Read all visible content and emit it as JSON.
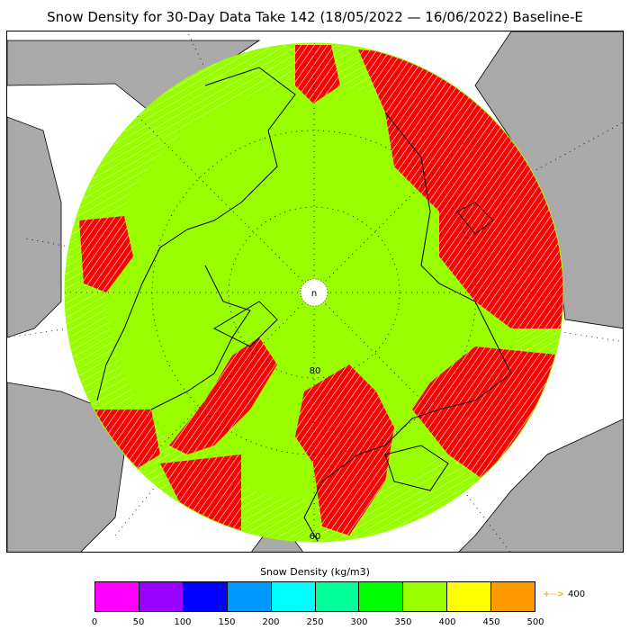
{
  "title": "Snow Density for 30-Day Data Take 142 (18/05/2022 — 16/06/2022) Baseline-E",
  "map": {
    "projection": "north-polar-stereographic",
    "latitude_labels": [
      "80",
      "60"
    ],
    "pole_marker": "n",
    "colors": {
      "land": "#a9a9a9",
      "ocean": "#ffffff",
      "density_350_400": "#99ff00",
      "density_over_400": "#ff0000",
      "coastline": "#000000",
      "graticule": "#000000"
    }
  },
  "colorbar": {
    "title": "Snow Density (kg/m3)",
    "tick_labels": [
      "0",
      "50",
      "100",
      "150",
      "200",
      "250",
      "300",
      "350",
      "400",
      "450",
      "500"
    ],
    "colors": [
      "#ff00ff",
      "#9900ff",
      "#0000ff",
      "#0099ff",
      "#00ffff",
      "#00ff99",
      "#00ff00",
      "#99ff00",
      "#ffff00",
      "#ff9900"
    ],
    "overflow_label": "400",
    "overflow_arrow": "+-->"
  }
}
